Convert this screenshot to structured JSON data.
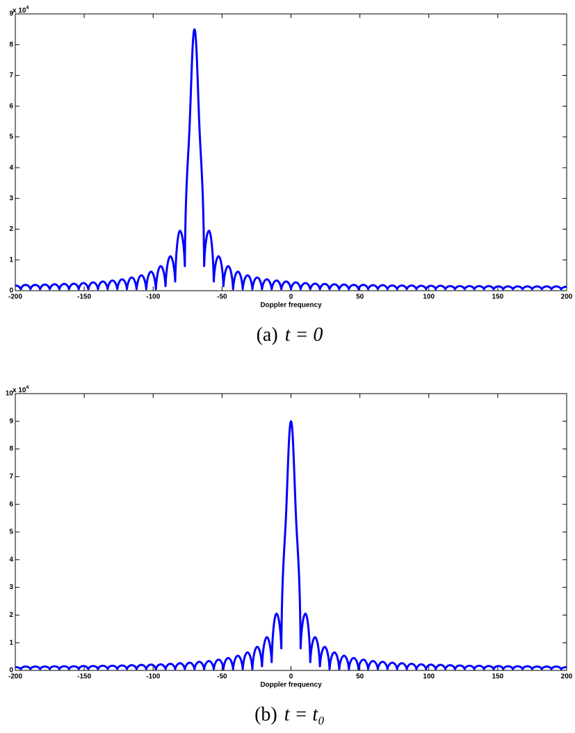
{
  "chart_data": [
    {
      "type": "line",
      "caption": "(a)",
      "caption_math": "t = 0",
      "xlabel": "Doppler frequency",
      "y_scale_label": "x 10",
      "y_scale_exp": "4",
      "color": "#0000ff",
      "xlim": [
        -200,
        200
      ],
      "xticks": [
        -200,
        -150,
        -100,
        -50,
        0,
        50,
        100,
        150,
        200
      ],
      "ylim": [
        0,
        9
      ],
      "yticks": [
        0,
        1,
        2,
        3,
        4,
        5,
        6,
        7,
        8,
        9
      ],
      "x": [
        -200,
        -196,
        -192.5,
        -189,
        -185.5,
        -182,
        -178.5,
        -175,
        -171.5,
        -168,
        -164.5,
        -161,
        -157.5,
        -154,
        -150.5,
        -147,
        -143.5,
        -140,
        -136.5,
        -133,
        -129.5,
        -126,
        -122.5,
        -119,
        -115.5,
        -112,
        -108.5,
        -105,
        -101.5,
        -98,
        -94.5,
        -91,
        -87.5,
        -84,
        -80.5,
        -77,
        -73.5,
        -70,
        -66.5,
        -63,
        -59.5,
        -56,
        -52.5,
        -49,
        -45.5,
        -42,
        -38.5,
        -35,
        -31.5,
        -28,
        -24.5,
        -21,
        -17.5,
        -14,
        -10.5,
        -7,
        -3.5,
        0,
        3.5,
        7,
        10.5,
        14,
        17.5,
        21,
        24.5,
        28,
        31.5,
        35,
        38.5,
        42,
        45.5,
        49,
        52.5,
        56,
        59.5,
        63,
        66.5,
        70,
        73.5,
        77,
        80.5,
        84,
        87.5,
        91,
        94.5,
        98,
        101.5,
        105,
        108.5,
        112,
        115.5,
        119,
        122.5,
        126,
        129.5,
        133,
        136.5,
        140,
        143.5,
        147,
        150.5,
        154,
        157.5,
        161,
        164.5,
        168,
        171.5,
        175,
        178.5,
        182,
        185.5,
        189,
        192.5,
        196,
        200
      ],
      "values": [
        0.17,
        0.05,
        0.19,
        0.05,
        0.19,
        0.05,
        0.2,
        0.05,
        0.21,
        0.05,
        0.22,
        0.05,
        0.23,
        0.05,
        0.25,
        0.05,
        0.27,
        0.05,
        0.3,
        0.05,
        0.33,
        0.05,
        0.37,
        0.05,
        0.43,
        0.05,
        0.5,
        0.05,
        0.62,
        0.05,
        0.8,
        0.15,
        1.12,
        0.3,
        1.95,
        0.8,
        5.4,
        8.5,
        5.4,
        0.8,
        1.95,
        0.3,
        1.12,
        0.15,
        0.8,
        0.05,
        0.62,
        0.05,
        0.5,
        0.05,
        0.43,
        0.05,
        0.37,
        0.05,
        0.33,
        0.05,
        0.3,
        0.05,
        0.27,
        0.05,
        0.25,
        0.05,
        0.23,
        0.05,
        0.22,
        0.05,
        0.21,
        0.05,
        0.2,
        0.05,
        0.19,
        0.05,
        0.19,
        0.05,
        0.18,
        0.05,
        0.18,
        0.05,
        0.17,
        0.05,
        0.17,
        0.05,
        0.17,
        0.05,
        0.16,
        0.05,
        0.16,
        0.05,
        0.16,
        0.05,
        0.15,
        0.05,
        0.15,
        0.05,
        0.15,
        0.05,
        0.15,
        0.05,
        0.15,
        0.05,
        0.14,
        0.05,
        0.14,
        0.05,
        0.14,
        0.05,
        0.14,
        0.05,
        0.14,
        0.05,
        0.14,
        0.05,
        0.14,
        0.05,
        0.13
      ]
    },
    {
      "type": "line",
      "caption": "(b)",
      "caption_math": "t = t₀",
      "xlabel": "Doppler frequency",
      "y_scale_label": "x 10",
      "y_scale_exp": "4",
      "color": "#0000ff",
      "xlim": [
        -200,
        200
      ],
      "xticks": [
        -200,
        -150,
        -100,
        -50,
        0,
        50,
        100,
        150,
        200
      ],
      "ylim": [
        0,
        10
      ],
      "yticks": [
        0,
        1,
        2,
        3,
        4,
        5,
        6,
        7,
        8,
        9,
        10
      ],
      "x": [
        -200,
        -196,
        -192.5,
        -189,
        -185.5,
        -182,
        -178.5,
        -175,
        -171.5,
        -168,
        -164.5,
        -161,
        -157.5,
        -154,
        -150.5,
        -147,
        -143.5,
        -140,
        -136.5,
        -133,
        -129.5,
        -126,
        -122.5,
        -119,
        -115.5,
        -112,
        -108.5,
        -105,
        -101.5,
        -98,
        -94.5,
        -91,
        -87.5,
        -84,
        -80.5,
        -77,
        -73.5,
        -70,
        -66.5,
        -63,
        -59.5,
        -56,
        -52.5,
        -49,
        -45.5,
        -42,
        -38.5,
        -35,
        -31.5,
        -28,
        -24.5,
        -21,
        -17.5,
        -14,
        -10.5,
        -7,
        -3.5,
        0,
        3.5,
        7,
        10.5,
        14,
        17.5,
        21,
        24.5,
        28,
        31.5,
        35,
        38.5,
        42,
        45.5,
        49,
        52.5,
        56,
        59.5,
        63,
        66.5,
        70,
        73.5,
        77,
        80.5,
        84,
        87.5,
        91,
        94.5,
        98,
        101.5,
        105,
        108.5,
        112,
        115.5,
        119,
        122.5,
        126,
        129.5,
        133,
        136.5,
        140,
        143.5,
        147,
        150.5,
        154,
        157.5,
        161,
        164.5,
        168,
        171.5,
        175,
        178.5,
        182,
        185.5,
        189,
        192.5,
        196,
        200
      ],
      "values": [
        0.12,
        0.05,
        0.14,
        0.05,
        0.14,
        0.05,
        0.14,
        0.05,
        0.15,
        0.05,
        0.15,
        0.05,
        0.15,
        0.05,
        0.16,
        0.05,
        0.16,
        0.05,
        0.17,
        0.05,
        0.17,
        0.05,
        0.18,
        0.05,
        0.19,
        0.05,
        0.2,
        0.05,
        0.21,
        0.05,
        0.22,
        0.05,
        0.24,
        0.05,
        0.26,
        0.05,
        0.28,
        0.05,
        0.31,
        0.05,
        0.34,
        0.05,
        0.39,
        0.05,
        0.45,
        0.05,
        0.53,
        0.05,
        0.65,
        0.05,
        0.85,
        0.15,
        1.2,
        0.3,
        2.05,
        0.8,
        5.7,
        9,
        5.7,
        0.8,
        2.05,
        0.3,
        1.2,
        0.15,
        0.85,
        0.05,
        0.65,
        0.05,
        0.53,
        0.05,
        0.45,
        0.05,
        0.39,
        0.05,
        0.34,
        0.05,
        0.31,
        0.05,
        0.28,
        0.05,
        0.26,
        0.05,
        0.24,
        0.05,
        0.22,
        0.05,
        0.21,
        0.05,
        0.2,
        0.05,
        0.19,
        0.05,
        0.18,
        0.05,
        0.17,
        0.05,
        0.17,
        0.05,
        0.16,
        0.05,
        0.16,
        0.05,
        0.15,
        0.05,
        0.15,
        0.05,
        0.15,
        0.05,
        0.14,
        0.05,
        0.14,
        0.05,
        0.14,
        0.05,
        0.12
      ]
    }
  ]
}
